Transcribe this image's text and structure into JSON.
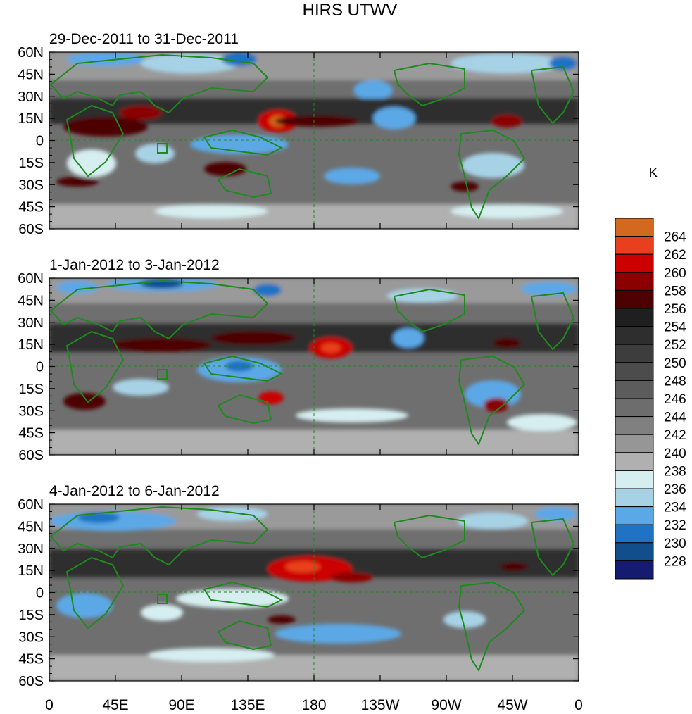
{
  "figure": {
    "title": "HIRS UTWV",
    "units_label": "K"
  },
  "panels": [
    {
      "subtitle": "29-Dec-2011 to 31-Dec-2011"
    },
    {
      "subtitle": "1-Jan-2012 to 3-Jan-2012"
    },
    {
      "subtitle": "4-Jan-2012 to 6-Jan-2012"
    }
  ],
  "axes": {
    "lat_ticks": [
      "60N",
      "45N",
      "30N",
      "15N",
      "0",
      "15S",
      "30S",
      "45S",
      "60S"
    ],
    "lon_ticks": [
      "0",
      "45E",
      "90E",
      "135E",
      "180",
      "135W",
      "90W",
      "45W",
      "0"
    ]
  },
  "colorbar": {
    "labels": [
      "264",
      "262",
      "260",
      "258",
      "256",
      "254",
      "252",
      "250",
      "248",
      "246",
      "244",
      "242",
      "240",
      "238",
      "236",
      "234",
      "232",
      "230",
      "228"
    ],
    "colors": [
      "#d2691e",
      "#e8401e",
      "#cc0000",
      "#8b0000",
      "#4d0000",
      "#1f1f1f",
      "#2e2e2e",
      "#3d3d3d",
      "#4c4c4c",
      "#5c5c5c",
      "#6d6d6d",
      "#808080",
      "#969696",
      "#b0b0b0",
      "#d6eef0",
      "#a7d2e6",
      "#5ba8e6",
      "#1f72c4",
      "#114f8c",
      "#151b6e"
    ]
  },
  "map_colors": {
    "coast": "#1e8a1e",
    "background": "#6f6f6f"
  }
}
